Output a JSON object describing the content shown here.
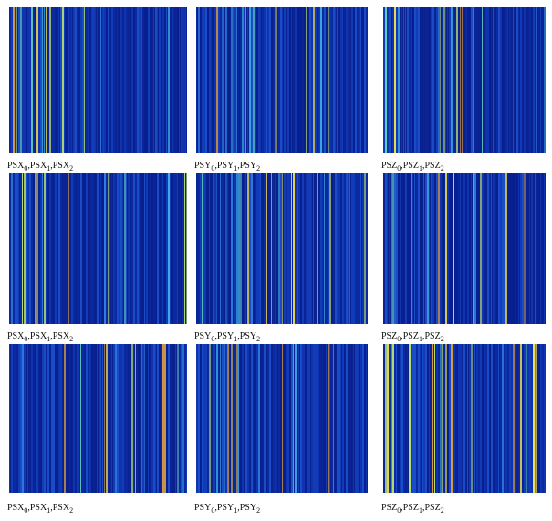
{
  "figure": {
    "separator": ",",
    "panels": [
      {
        "caption": {
          "terms": [
            {
              "name": "PSX",
              "sub": "0"
            },
            {
              "name": "PSX",
              "sub": "1"
            },
            {
              "name": "PSX",
              "sub": "2"
            }
          ]
        }
      },
      {
        "caption": {
          "terms": [
            {
              "name": "PSY",
              "sub": "0"
            },
            {
              "name": "PSY",
              "sub": "1"
            },
            {
              "name": "PSY",
              "sub": "2"
            }
          ]
        }
      },
      {
        "caption": {
          "terms": [
            {
              "name": "PSZ",
              "sub": "0"
            },
            {
              "name": "PSZ",
              "sub": "1"
            },
            {
              "name": "PSZ",
              "sub": "2"
            }
          ]
        }
      },
      {
        "caption": {
          "terms": [
            {
              "name": "PSX",
              "sub": "0"
            },
            {
              "name": "PSX",
              "sub": "1"
            },
            {
              "name": "PSX",
              "sub": "2"
            }
          ]
        }
      },
      {
        "caption": {
          "terms": [
            {
              "name": "PSY",
              "sub": "0"
            },
            {
              "name": "PSY",
              "sub": "1"
            },
            {
              "name": "PSY",
              "sub": "2"
            }
          ]
        }
      },
      {
        "caption": {
          "terms": [
            {
              "name": "PSZ",
              "sub": "0"
            },
            {
              "name": "PSZ",
              "sub": "1"
            },
            {
              "name": "PSZ",
              "sub": "2"
            }
          ]
        }
      },
      {
        "caption": {
          "terms": [
            {
              "name": "PSX",
              "sub": "0"
            },
            {
              "name": "PSX",
              "sub": "1"
            },
            {
              "name": "PSX",
              "sub": "2"
            }
          ]
        }
      },
      {
        "caption": {
          "terms": [
            {
              "name": "PSY",
              "sub": "0"
            },
            {
              "name": "PSY",
              "sub": "1"
            },
            {
              "name": "PSY",
              "sub": "2"
            }
          ]
        }
      },
      {
        "caption": {
          "terms": [
            {
              "name": "PSZ",
              "sub": "0"
            },
            {
              "name": "PSZ",
              "sub": "1"
            },
            {
              "name": "PSZ",
              "sub": "2"
            }
          ]
        }
      }
    ]
  }
}
